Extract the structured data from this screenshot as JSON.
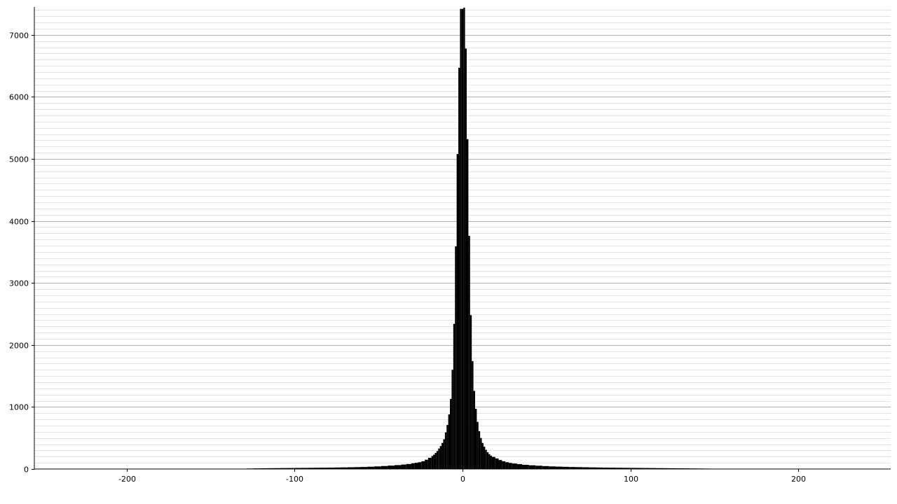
{
  "chart_data": {
    "type": "bar",
    "title": "",
    "xlabel": "",
    "ylabel": "",
    "xlim": [
      -255,
      255
    ],
    "ylim": [
      0,
      7450
    ],
    "grid": "horizontal",
    "legend": "none",
    "bar_color": "#000000",
    "major_grid_color": "#b0b0b0",
    "minor_grid_color": "#e3e3e3",
    "y_major_step": 1000,
    "y_minor_step": 100,
    "x_ticks": [
      {
        "value": -200,
        "label": "-200"
      },
      {
        "value": -100,
        "label": "-100"
      },
      {
        "value": 0,
        "label": "0"
      },
      {
        "value": 100,
        "label": "100"
      },
      {
        "value": 200,
        "label": "200"
      }
    ],
    "y_ticks": [
      {
        "value": 0,
        "label": "0"
      },
      {
        "value": 1000,
        "label": "1000"
      },
      {
        "value": 2000,
        "label": "2000"
      },
      {
        "value": 3000,
        "label": "3000"
      },
      {
        "value": 4000,
        "label": "4000"
      },
      {
        "value": 5000,
        "label": "5000"
      },
      {
        "value": 6000,
        "label": "6000"
      },
      {
        "value": 7000,
        "label": "7000"
      }
    ],
    "bins": [
      {
        "x": -128,
        "count": 8
      },
      {
        "x": -124,
        "count": 10
      },
      {
        "x": -120,
        "count": 12
      },
      {
        "x": -116,
        "count": 13
      },
      {
        "x": -112,
        "count": 14
      },
      {
        "x": -108,
        "count": 15
      },
      {
        "x": -104,
        "count": 16
      },
      {
        "x": -100,
        "count": 17
      },
      {
        "x": -96,
        "count": 18
      },
      {
        "x": -92,
        "count": 19
      },
      {
        "x": -88,
        "count": 20
      },
      {
        "x": -84,
        "count": 21
      },
      {
        "x": -80,
        "count": 22
      },
      {
        "x": -76,
        "count": 24
      },
      {
        "x": -72,
        "count": 26
      },
      {
        "x": -68,
        "count": 28
      },
      {
        "x": -64,
        "count": 30
      },
      {
        "x": -60,
        "count": 33
      },
      {
        "x": -56,
        "count": 37
      },
      {
        "x": -52,
        "count": 42
      },
      {
        "x": -48,
        "count": 48
      },
      {
        "x": -44,
        "count": 55
      },
      {
        "x": -40,
        "count": 63
      },
      {
        "x": -36,
        "count": 72
      },
      {
        "x": -33,
        "count": 80
      },
      {
        "x": -30,
        "count": 92
      },
      {
        "x": -28,
        "count": 100
      },
      {
        "x": -26,
        "count": 110
      },
      {
        "x": -24,
        "count": 125
      },
      {
        "x": -22,
        "count": 150
      },
      {
        "x": -20,
        "count": 180
      },
      {
        "x": -18,
        "count": 210
      },
      {
        "x": -17,
        "count": 230
      },
      {
        "x": -16,
        "count": 260
      },
      {
        "x": -15,
        "count": 290
      },
      {
        "x": -14,
        "count": 330
      },
      {
        "x": -13,
        "count": 370
      },
      {
        "x": -12,
        "count": 420
      },
      {
        "x": -11,
        "count": 480
      },
      {
        "x": -10,
        "count": 590
      },
      {
        "x": -9,
        "count": 710
      },
      {
        "x": -8,
        "count": 880
      },
      {
        "x": -7,
        "count": 1130
      },
      {
        "x": -6,
        "count": 1600
      },
      {
        "x": -5,
        "count": 2340
      },
      {
        "x": -4,
        "count": 3590
      },
      {
        "x": -3,
        "count": 5080
      },
      {
        "x": -2,
        "count": 6470
      },
      {
        "x": -1,
        "count": 7420
      },
      {
        "x": 0,
        "count": 7420
      },
      {
        "x": 1,
        "count": 7440
      },
      {
        "x": 2,
        "count": 6780
      },
      {
        "x": 3,
        "count": 5320
      },
      {
        "x": 4,
        "count": 3760
      },
      {
        "x": 5,
        "count": 2480
      },
      {
        "x": 6,
        "count": 1740
      },
      {
        "x": 7,
        "count": 1260
      },
      {
        "x": 8,
        "count": 970
      },
      {
        "x": 9,
        "count": 760
      },
      {
        "x": 10,
        "count": 610
      },
      {
        "x": 11,
        "count": 500
      },
      {
        "x": 12,
        "count": 420
      },
      {
        "x": 13,
        "count": 360
      },
      {
        "x": 14,
        "count": 310
      },
      {
        "x": 15,
        "count": 270
      },
      {
        "x": 16,
        "count": 240
      },
      {
        "x": 17,
        "count": 215
      },
      {
        "x": 18,
        "count": 195
      },
      {
        "x": 20,
        "count": 170
      },
      {
        "x": 22,
        "count": 145
      },
      {
        "x": 24,
        "count": 125
      },
      {
        "x": 26,
        "count": 110
      },
      {
        "x": 28,
        "count": 98
      },
      {
        "x": 30,
        "count": 88
      },
      {
        "x": 33,
        "count": 78
      },
      {
        "x": 36,
        "count": 68
      },
      {
        "x": 40,
        "count": 60
      },
      {
        "x": 44,
        "count": 53
      },
      {
        "x": 48,
        "count": 47
      },
      {
        "x": 52,
        "count": 42
      },
      {
        "x": 56,
        "count": 38
      },
      {
        "x": 60,
        "count": 35
      },
      {
        "x": 64,
        "count": 32
      },
      {
        "x": 68,
        "count": 30
      },
      {
        "x": 72,
        "count": 28
      },
      {
        "x": 76,
        "count": 26
      },
      {
        "x": 80,
        "count": 24
      },
      {
        "x": 84,
        "count": 22
      },
      {
        "x": 88,
        "count": 21
      },
      {
        "x": 92,
        "count": 20
      },
      {
        "x": 96,
        "count": 19
      },
      {
        "x": 100,
        "count": 18
      },
      {
        "x": 104,
        "count": 17
      },
      {
        "x": 108,
        "count": 16
      },
      {
        "x": 112,
        "count": 15
      },
      {
        "x": 116,
        "count": 14
      },
      {
        "x": 120,
        "count": 13
      },
      {
        "x": 124,
        "count": 12
      },
      {
        "x": 128,
        "count": 11
      },
      {
        "x": 132,
        "count": 10
      },
      {
        "x": 136,
        "count": 9
      },
      {
        "x": 140,
        "count": 8
      },
      {
        "x": 144,
        "count": 7
      },
      {
        "x": 148,
        "count": 6
      }
    ]
  }
}
